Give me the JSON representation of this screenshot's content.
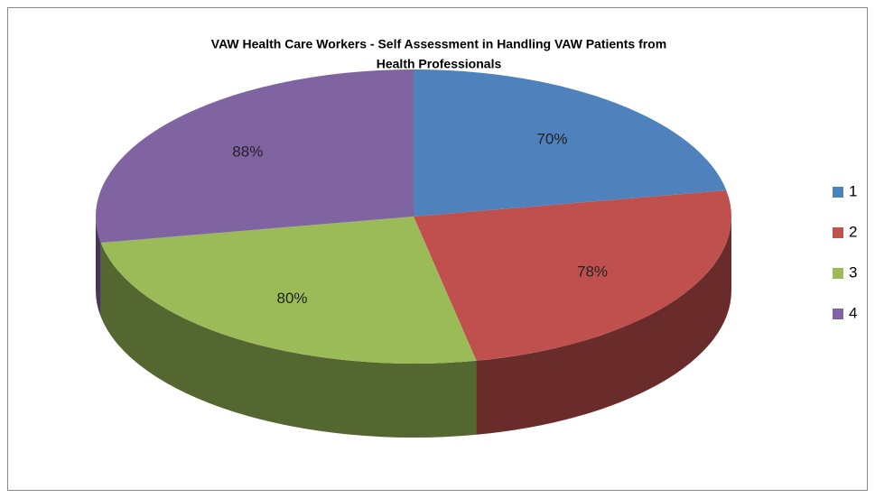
{
  "chart_data": {
    "type": "pie",
    "title": [
      "VAW Health Care Workers - Self Assessment in Handling VAW Patients from",
      "Health  Professionals"
    ],
    "categories": [
      "1",
      "2",
      "3",
      "4"
    ],
    "values": [
      70,
      78,
      80,
      88
    ],
    "value_labels": [
      "70%",
      "78%",
      "80%",
      "88%"
    ],
    "colors": [
      "#4f81bd",
      "#c0504d",
      "#9bbb59",
      "#8064a2"
    ],
    "legend": "right"
  }
}
